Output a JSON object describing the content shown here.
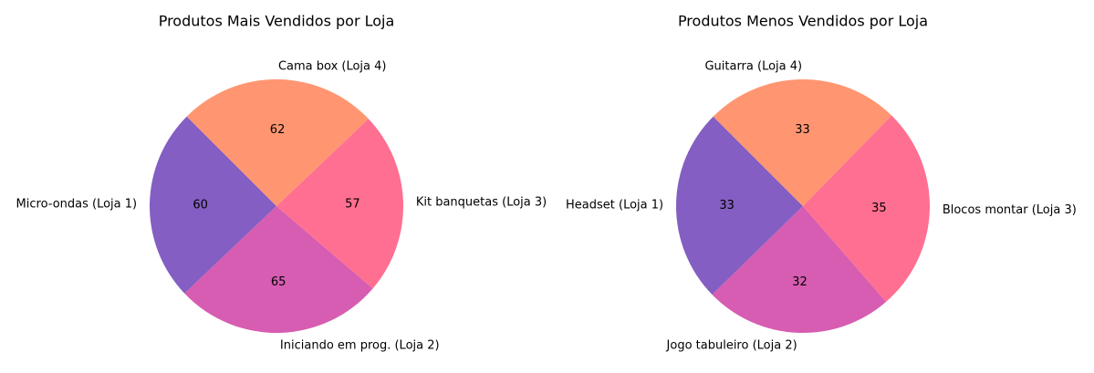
{
  "chart_data": [
    {
      "type": "pie",
      "title": "Produtos Mais Vendidos por Loja",
      "labels": [
        "Micro-ondas (Loja 1)",
        "Iniciando em prog. (Loja 2)",
        "Kit banquetas (Loja 3)",
        "Cama box (Loja 4)"
      ],
      "values": [
        60,
        65,
        57,
        62
      ],
      "colors": [
        "#845EC2",
        "#D65DB1",
        "#FF6F91",
        "#FF9671"
      ],
      "start_angle_deg": 135,
      "direction": "counterclockwise",
      "value_labels": "absolute"
    },
    {
      "type": "pie",
      "title": "Produtos Menos Vendidos por Loja",
      "labels": [
        "Headset (Loja 1)",
        "Jogo tabuleiro (Loja 2)",
        "Blocos montar (Loja 3)",
        "Guitarra (Loja 4)"
      ],
      "values": [
        33,
        32,
        35,
        33
      ],
      "colors": [
        "#845EC2",
        "#D65DB1",
        "#FF6F91",
        "#FF9671"
      ],
      "start_angle_deg": 135,
      "direction": "counterclockwise",
      "value_labels": "absolute"
    }
  ]
}
